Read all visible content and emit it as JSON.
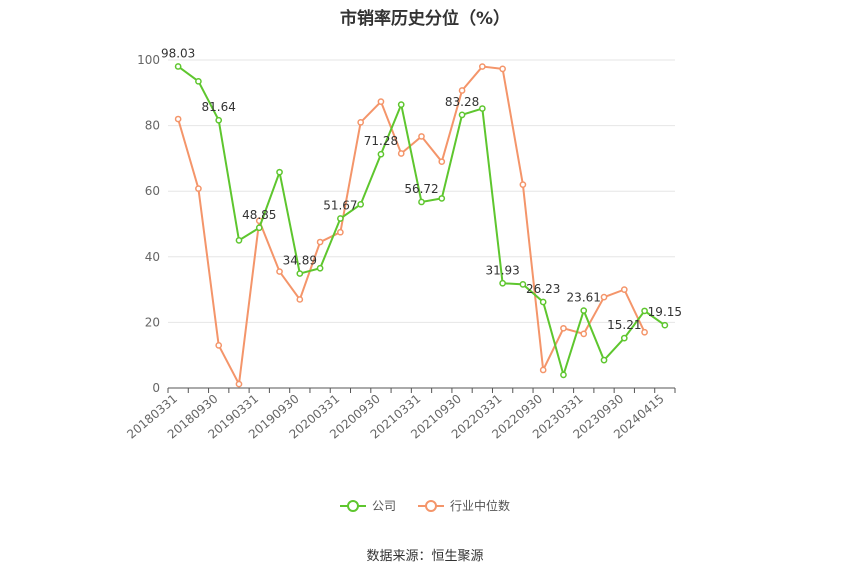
{
  "title": "市销率历史分位（%）",
  "source": "数据来源：恒生聚源",
  "colors": {
    "company": "#5ec62e",
    "industry": "#f4956a",
    "grid": "#e6e6e6",
    "axis": "#555555"
  },
  "legend": [
    {
      "label": "公司",
      "color": "#5ec62e"
    },
    {
      "label": "行业中位数",
      "color": "#f4956a"
    }
  ],
  "chart_data": {
    "type": "line",
    "title": "市销率历史分位（%）",
    "ylim": [
      0,
      100
    ],
    "yticks": [
      0,
      20,
      40,
      60,
      80,
      100
    ],
    "grid": true,
    "legend_position": "bottom",
    "x": [
      "20180331",
      "20180630",
      "20180930",
      "20181231",
      "20190331",
      "20190630",
      "20190930",
      "20191231",
      "20200331",
      "20200630",
      "20200930",
      "20201231",
      "20210331",
      "20210630",
      "20210930",
      "20211231",
      "20220331",
      "20220630",
      "20220930",
      "20221231",
      "20230331",
      "20230630",
      "20230930",
      "20231231",
      "20240415"
    ],
    "xticklabels": [
      "20180331",
      "20180930",
      "20190331",
      "20190930",
      "20200331",
      "20200930",
      "20210331",
      "20210930",
      "20220331",
      "20220930",
      "20230331",
      "20230930",
      "20240415"
    ],
    "series": [
      {
        "name": "公司",
        "values": [
          98.03,
          93.5,
          81.64,
          45.0,
          48.85,
          65.8,
          34.89,
          36.5,
          51.67,
          56.0,
          71.28,
          86.4,
          56.72,
          57.8,
          83.28,
          85.2,
          31.93,
          31.6,
          26.23,
          4.0,
          23.61,
          8.5,
          15.21,
          23.5,
          19.15
        ],
        "labels": [
          "98.03",
          "",
          "81.64",
          "",
          "48.85",
          "",
          "34.89",
          "",
          "51.67",
          "",
          "71.28",
          "",
          "56.72",
          "",
          "83.28",
          "",
          "31.93",
          "",
          "26.23",
          "",
          "23.61",
          "",
          "15.21",
          "",
          "19.15"
        ]
      },
      {
        "name": "行业中位数",
        "values": [
          82.0,
          60.8,
          13.0,
          1.2,
          51.0,
          35.5,
          27.0,
          44.5,
          47.5,
          81.0,
          87.3,
          71.5,
          76.7,
          69.0,
          90.7,
          98.0,
          97.3,
          62.0,
          5.5,
          18.2,
          16.5,
          27.7,
          30.0,
          17.0,
          null
        ],
        "labels": []
      }
    ]
  }
}
